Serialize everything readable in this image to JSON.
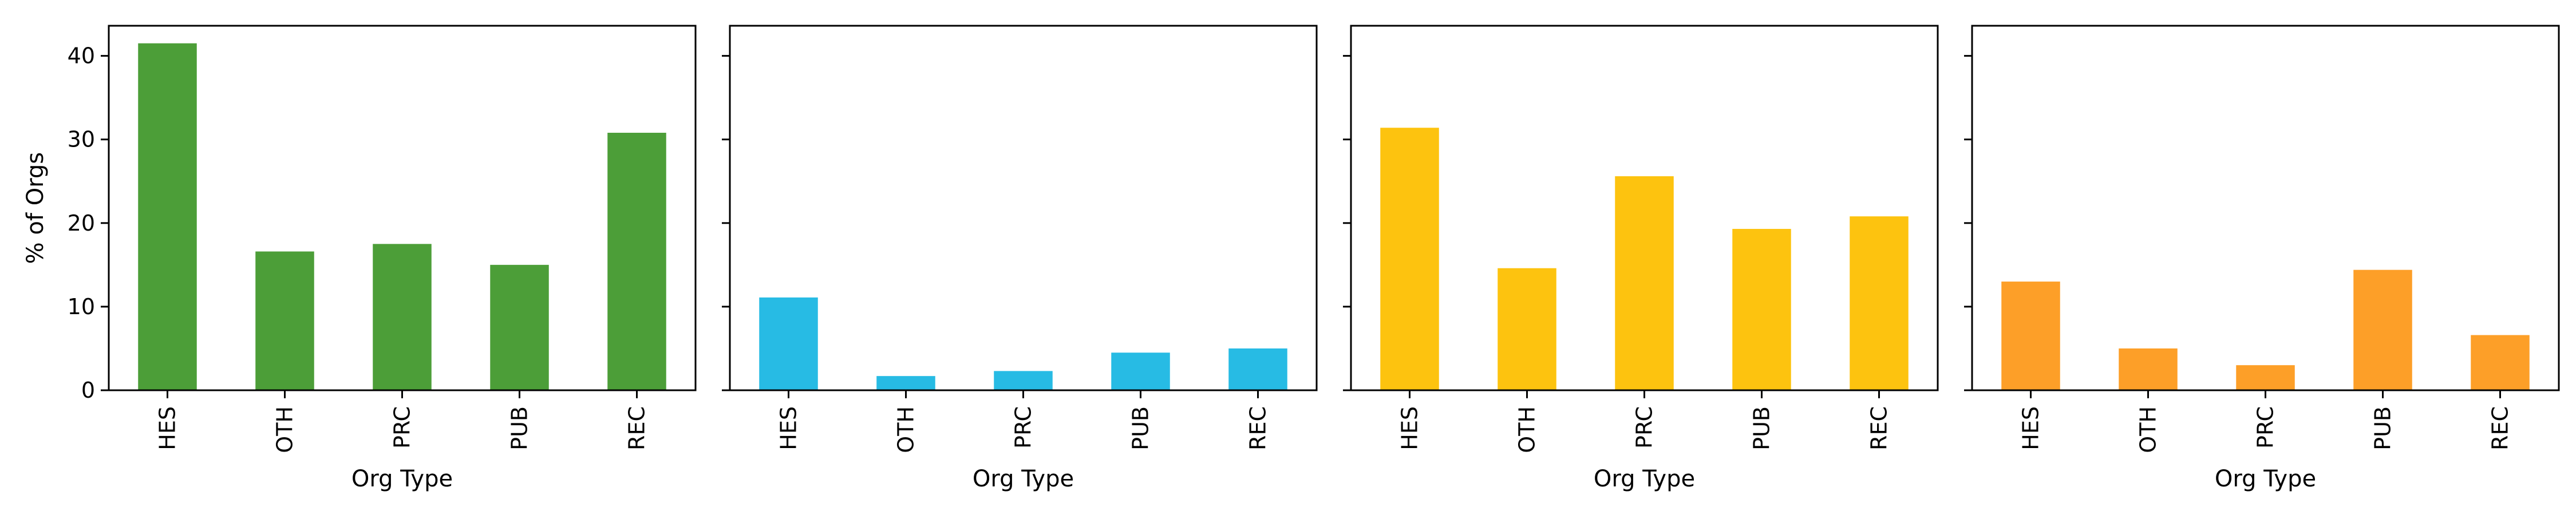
{
  "chart_data": [
    {
      "type": "bar",
      "categories": [
        "HES",
        "OTH",
        "PRC",
        "PUB",
        "REC"
      ],
      "values": [
        41.5,
        16.6,
        17.5,
        15.0,
        30.8
      ],
      "color": "#4c9e38",
      "xlabel": "Org Type",
      "ylabel": "% of Orgs",
      "ylim": [
        0,
        43.6
      ],
      "yticks": [
        0,
        10,
        20,
        30,
        40
      ],
      "show_ytick_labels": true
    },
    {
      "type": "bar",
      "categories": [
        "HES",
        "OTH",
        "PRC",
        "PUB",
        "REC"
      ],
      "values": [
        11.1,
        1.7,
        2.3,
        4.5,
        5.0
      ],
      "color": "#27bbe4",
      "xlabel": "Org Type",
      "ylabel": "",
      "ylim": [
        0,
        43.6
      ],
      "yticks": [
        0,
        10,
        20,
        30,
        40
      ],
      "show_ytick_labels": false
    },
    {
      "type": "bar",
      "categories": [
        "HES",
        "OTH",
        "PRC",
        "PUB",
        "REC"
      ],
      "values": [
        31.4,
        14.6,
        25.6,
        19.3,
        20.8
      ],
      "color": "#fdc30f",
      "xlabel": "Org Type",
      "ylabel": "",
      "ylim": [
        0,
        43.6
      ],
      "yticks": [
        0,
        10,
        20,
        30,
        40
      ],
      "show_ytick_labels": false
    },
    {
      "type": "bar",
      "categories": [
        "HES",
        "OTH",
        "PRC",
        "PUB",
        "REC"
      ],
      "values": [
        13.0,
        5.0,
        3.0,
        14.4,
        6.6
      ],
      "color": "#fd9f28",
      "xlabel": "Org Type",
      "ylabel": "",
      "ylim": [
        0,
        43.6
      ],
      "yticks": [
        0,
        10,
        20,
        30,
        40
      ],
      "show_ytick_labels": false
    }
  ]
}
